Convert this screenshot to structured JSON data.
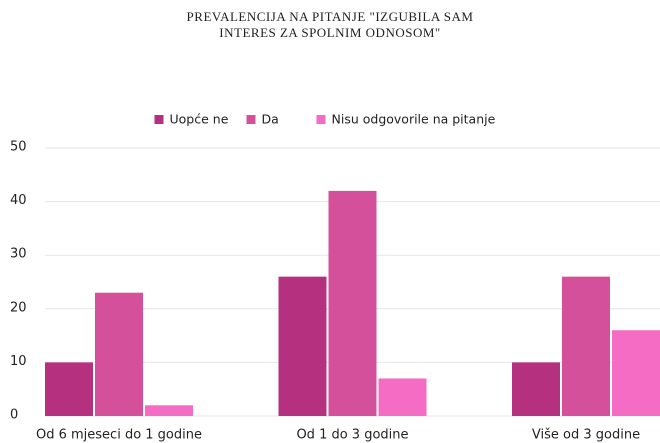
{
  "chart_data": {
    "type": "bar",
    "title": [
      "PREVALENCIJA NA PITANJE \"IZGUBILA SAM",
      "INTERES ZA SPOLNIM ODNOSOM\""
    ],
    "categories": [
      "Od 6 mjeseci do 1 godine",
      "Od 1 do 3 godine",
      "Više od 3 godine"
    ],
    "series": [
      {
        "name": "Uopće ne",
        "color": "#b5307f",
        "values": [
          10,
          26,
          10
        ]
      },
      {
        "name": "Da",
        "color": "#d4509b",
        "values": [
          23,
          42,
          26
        ]
      },
      {
        "name": "Nisu odgovorile na pitanje",
        "color": "#f56cc4",
        "values": [
          2,
          7,
          16
        ]
      }
    ],
    "ylim": [
      0,
      50
    ],
    "yticks": [
      0,
      10,
      20,
      30,
      40,
      50
    ],
    "grid": true,
    "legend": "top"
  }
}
